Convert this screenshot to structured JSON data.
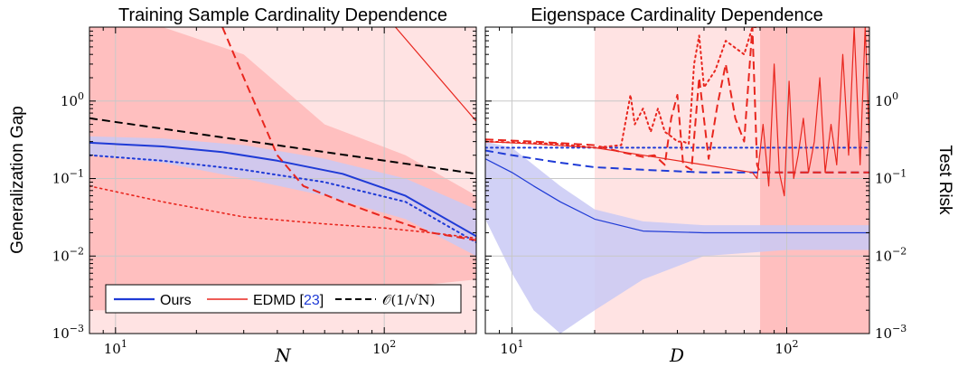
{
  "colors": {
    "ours": "#1f3bd6",
    "edmd": "#e8261e",
    "bound": "#000000",
    "band_light": "#ffd9d9",
    "band_mid": "#ffb3b3",
    "band_blue": "#c9c9f4",
    "grid": "#c8c8c8"
  },
  "y_axis_label": "Generalization Gap",
  "y2_axis_label": "Test Risk",
  "legend": {
    "ours": "Ours",
    "edmd_text": "EDMD [",
    "edmd_ref": "23",
    "edmd_close": "]",
    "bound": "𝒪(1/√N)"
  },
  "y_ticks": [
    {
      "value": 0.001,
      "base": "10",
      "exp": "−3"
    },
    {
      "value": 0.01,
      "base": "10",
      "exp": "−2"
    },
    {
      "value": 0.1,
      "base": "10",
      "exp": "−1"
    },
    {
      "value": 1,
      "base": "10",
      "exp": "0"
    }
  ],
  "chart_data": [
    {
      "type": "line",
      "title": "Training Sample Cardinality Dependence",
      "xlabel": "N",
      "ylabel": "Generalization Gap",
      "xscale": "log",
      "yscale": "log",
      "xlim": [
        8,
        220
      ],
      "ylim": [
        0.001,
        9
      ],
      "grid": true,
      "legend_position": "bottom-left",
      "x_ticks": [
        {
          "value": 10,
          "base": "10",
          "exp": "1"
        },
        {
          "value": 100,
          "base": "10",
          "exp": "2"
        }
      ],
      "bands": [
        {
          "series": "EDMD light",
          "color": "#ffdede",
          "x": [
            8,
            15,
            30,
            60,
            120,
            220
          ],
          "lower": [
            0.001,
            0.001,
            0.001,
            0.001,
            0.001,
            0.001
          ],
          "upper": [
            9,
            9,
            9,
            9,
            9,
            9
          ]
        },
        {
          "series": "EDMD",
          "color": "#ffb8b8",
          "x": [
            8,
            15,
            30,
            60,
            120,
            220
          ],
          "lower": [
            0.002,
            0.002,
            0.003,
            0.003,
            0.004,
            0.005
          ],
          "upper": [
            9,
            9,
            4,
            0.5,
            0.2,
            0.06
          ]
        },
        {
          "series": "Ours",
          "color": "#c9c9f4",
          "x": [
            8,
            15,
            30,
            60,
            120,
            220
          ],
          "lower": [
            0.2,
            0.16,
            0.1,
            0.06,
            0.03,
            0.01
          ],
          "upper": [
            0.35,
            0.33,
            0.27,
            0.18,
            0.1,
            0.04
          ]
        }
      ],
      "series": [
        {
          "name": "Ours",
          "color": "#1f3bd6",
          "dash": "solid",
          "width": 2,
          "x": [
            8,
            15,
            25,
            40,
            70,
            120,
            220
          ],
          "y": [
            0.29,
            0.26,
            0.22,
            0.17,
            0.115,
            0.06,
            0.018
          ]
        },
        {
          "color": "#1f3bd6",
          "dash": "dotted",
          "width": 2,
          "x": [
            8,
            15,
            30,
            60,
            120,
            220
          ],
          "y": [
            0.2,
            0.17,
            0.13,
            0.09,
            0.05,
            0.015
          ]
        },
        {
          "color": "#e8261e",
          "dash": "dashed",
          "width": 2,
          "x": [
            25,
            30,
            40,
            50,
            70,
            100,
            150,
            220
          ],
          "y": [
            9,
            2,
            0.2,
            0.08,
            0.05,
            0.032,
            0.02,
            0.016
          ]
        },
        {
          "color": "#e8261e",
          "dash": "dotted",
          "width": 1.6,
          "x": [
            8,
            15,
            30,
            60,
            100,
            150,
            220
          ],
          "y": [
            0.08,
            0.05,
            0.032,
            0.026,
            0.023,
            0.02,
            0.017
          ]
        },
        {
          "color": "#e8261e",
          "dash": "solid",
          "width": 1.2,
          "x": [
            110,
            220
          ],
          "y": [
            9,
            0.55
          ]
        },
        {
          "name": "𝒪(1/√N)",
          "color": "#000000",
          "dash": "dashed",
          "width": 2,
          "x": [
            8,
            220
          ],
          "y": [
            0.6,
            0.115
          ]
        }
      ]
    },
    {
      "type": "line",
      "title": "Eigenspace Cardinality Dependence",
      "xlabel": "D",
      "ylabel": "Test Risk",
      "xscale": "log",
      "yscale": "log",
      "xlim": [
        8,
        200
      ],
      "ylim": [
        0.001,
        9
      ],
      "grid": true,
      "x_ticks": [
        {
          "value": 10,
          "base": "10",
          "exp": "1"
        },
        {
          "value": 100,
          "base": "10",
          "exp": "2"
        }
      ],
      "bands": [
        {
          "series": "EDMD light",
          "color": "#ffdede",
          "x": [
            20,
            30,
            50,
            80,
            120,
            200
          ],
          "lower": [
            0.001,
            0.001,
            0.001,
            0.001,
            0.001,
            0.001
          ],
          "upper": [
            9,
            9,
            9,
            9,
            9,
            9
          ]
        },
        {
          "series": "EDMD",
          "color": "#ffb8b8",
          "x": [
            80,
            100,
            150,
            200
          ],
          "lower": [
            0.001,
            0.001,
            0.001,
            0.001
          ],
          "upper": [
            9,
            9,
            9,
            9
          ]
        },
        {
          "series": "Ours",
          "color": "#c9c9f4",
          "x": [
            8,
            10,
            12,
            15,
            20,
            30,
            50,
            100,
            200
          ],
          "lower": [
            0.03,
            0.006,
            0.002,
            0.001,
            0.002,
            0.005,
            0.01,
            0.012,
            0.012
          ],
          "upper": [
            0.3,
            0.25,
            0.15,
            0.08,
            0.04,
            0.028,
            0.025,
            0.025,
            0.025
          ]
        }
      ],
      "series": [
        {
          "name": "Ours",
          "color": "#1f3bd6",
          "dash": "solid",
          "width": 1.2,
          "x": [
            8,
            10,
            12,
            15,
            20,
            30,
            50,
            100,
            200
          ],
          "y": [
            0.18,
            0.12,
            0.08,
            0.05,
            0.03,
            0.021,
            0.02,
            0.02,
            0.02
          ]
        },
        {
          "color": "#1f3bd6",
          "dash": "dashed",
          "width": 2,
          "x": [
            8,
            10,
            15,
            20,
            30,
            50,
            200
          ],
          "y": [
            0.23,
            0.2,
            0.16,
            0.14,
            0.13,
            0.12,
            0.12
          ]
        },
        {
          "color": "#1f3bd6",
          "dash": "dotted",
          "width": 2,
          "x": [
            8,
            200
          ],
          "y": [
            0.25,
            0.25
          ]
        },
        {
          "color": "#e8261e",
          "dash": "solid",
          "width": 1.2,
          "x": [
            8,
            12,
            20,
            30,
            50,
            75,
            78,
            82,
            86,
            90,
            94,
            98,
            102,
            106,
            110,
            115,
            120,
            126,
            132,
            138,
            145,
            152,
            160,
            168,
            176,
            185,
            193,
            200
          ],
          "y": [
            0.3,
            0.28,
            0.25,
            0.2,
            0.15,
            0.12,
            0.1,
            0.5,
            0.08,
            3,
            0.12,
            0.06,
            1.8,
            0.1,
            0.2,
            0.6,
            0.12,
            0.3,
            2,
            0.12,
            0.5,
            0.15,
            4,
            0.2,
            9,
            0.15,
            9,
            0.3
          ]
        },
        {
          "color": "#e8261e",
          "dash": "dashed",
          "width": 2,
          "x": [
            8,
            12,
            20,
            25,
            30,
            33,
            36,
            38,
            40,
            42,
            45,
            48,
            52,
            56,
            60,
            65,
            70,
            75,
            78,
            80,
            85,
            90,
            95,
            100,
            200
          ],
          "y": [
            0.32,
            0.3,
            0.27,
            0.22,
            0.19,
            0.2,
            0.15,
            0.6,
            1.2,
            0.15,
            0.13,
            2,
            0.18,
            0.9,
            3,
            0.6,
            0.3,
            9,
            0.15,
            0.12,
            0.12,
            0.12,
            0.12,
            0.12,
            0.12
          ]
        },
        {
          "color": "#e8261e",
          "dash": "dotted",
          "width": 2,
          "x": [
            8,
            15,
            20,
            25,
            27,
            28,
            30,
            32,
            34,
            36,
            38,
            40,
            42,
            44,
            46,
            48,
            50,
            55,
            60,
            70,
            75,
            80
          ],
          "y": [
            0.3,
            0.28,
            0.25,
            0.27,
            1.2,
            0.5,
            0.8,
            0.4,
            0.8,
            0.4,
            0.35,
            0.3,
            0.3,
            0.28,
            3,
            7,
            1.5,
            2.5,
            6,
            4,
            9,
            9
          ]
        }
      ]
    }
  ]
}
